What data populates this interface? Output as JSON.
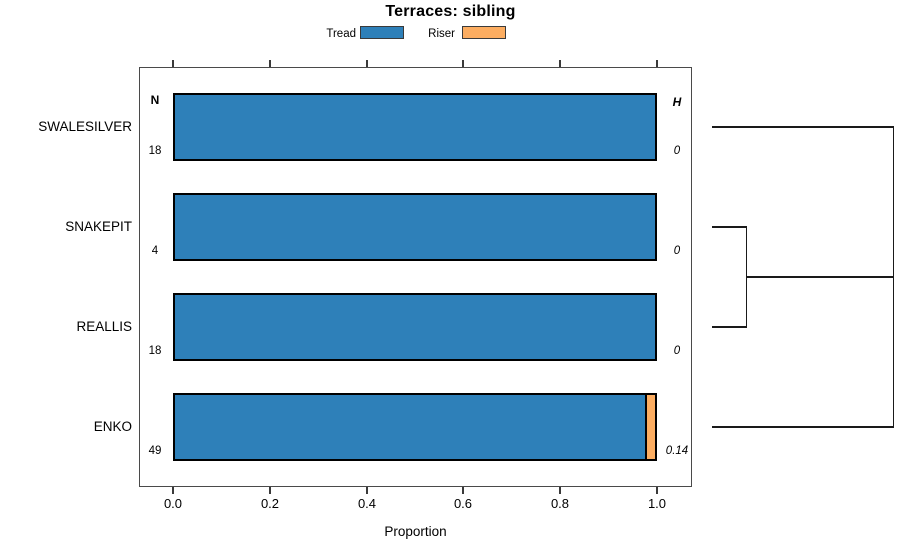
{
  "title": "Terraces: sibling",
  "legend": {
    "items": [
      {
        "label": "Tread",
        "color": "#2E80B9"
      },
      {
        "label": "Riser",
        "color": "#FCAD61"
      }
    ]
  },
  "axis": {
    "x_label": "Proportion",
    "x_ticks": [
      "0.0",
      "0.2",
      "0.4",
      "0.6",
      "0.8",
      "1.0"
    ]
  },
  "columns": {
    "n_header": "N",
    "h_header": "H"
  },
  "rows": [
    {
      "label": "SWALESILVER",
      "n": "18",
      "h": "0",
      "tread": 1.0,
      "riser": 0.0
    },
    {
      "label": "SNAKEPIT",
      "n": "4",
      "h": "0",
      "tread": 1.0,
      "riser": 0.0
    },
    {
      "label": "REALLIS",
      "n": "18",
      "h": "0",
      "tread": 1.0,
      "riser": 0.0
    },
    {
      "label": "ENKO",
      "n": "49",
      "h": "0.14",
      "tread": 0.98,
      "riser": 0.02
    }
  ],
  "chart_data": {
    "type": "bar",
    "orientation": "horizontal",
    "stacked": true,
    "title": "Terraces: sibling",
    "xlabel": "Proportion",
    "ylabel": "",
    "xlim": [
      0,
      1
    ],
    "x_ticks": [
      0.0,
      0.2,
      0.4,
      0.6,
      0.8,
      1.0
    ],
    "categories": [
      "SWALESILVER",
      "SNAKEPIT",
      "REALLIS",
      "ENKO"
    ],
    "series": [
      {
        "name": "Tread",
        "color": "#2E80B9",
        "values": [
          1.0,
          1.0,
          1.0,
          0.98
        ]
      },
      {
        "name": "Riser",
        "color": "#FCAD61",
        "values": [
          0.0,
          0.0,
          0.0,
          0.02
        ]
      }
    ],
    "n_values": [
      18,
      4,
      18,
      49
    ],
    "h_values": [
      0,
      0,
      0,
      0.14
    ],
    "legend_position": "top",
    "grid": false,
    "annotations": {
      "left_column": "N (sample size)",
      "right_column": "H (heterozygosity, italic)"
    },
    "dendrogram": {
      "position": "right",
      "leaves_top_to_bottom": [
        "SWALESILVER",
        "SNAKEPIT",
        "REALLIS",
        "ENKO"
      ],
      "structure": "SNAKEPIT and REALLIS join at low height; that cluster, SWALESILVER and ENKO all join at the root (far right)"
    }
  }
}
